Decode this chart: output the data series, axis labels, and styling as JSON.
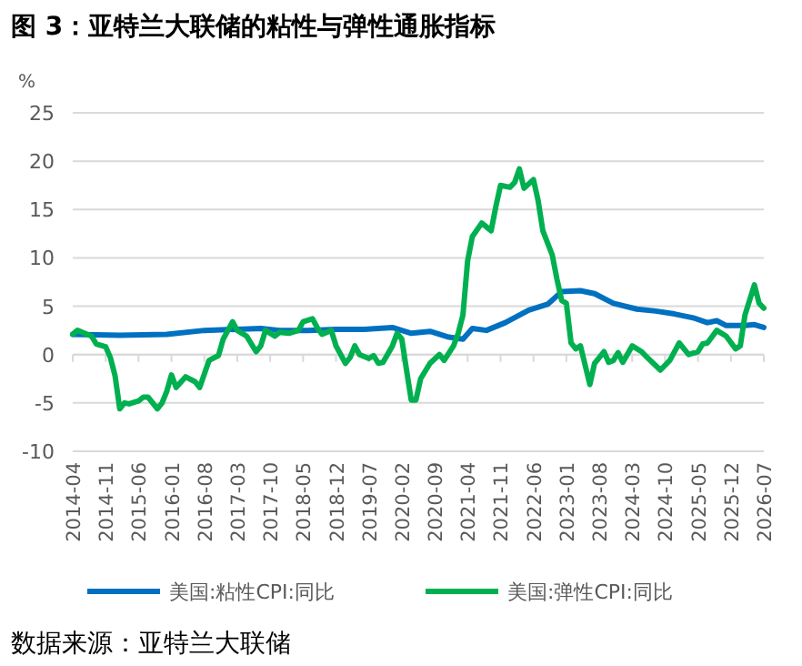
{
  "chart_data": {
    "type": "line",
    "title": "图 3：亚特兰大联储的粘性与弹性通胀指标",
    "ylabel": "%",
    "annotations": [
      "数据来源：亚特兰大联储"
    ],
    "xlim": [
      "2014-04",
      "2026-07"
    ],
    "xticks": [
      "2014-04",
      "2014-11",
      "2015-06",
      "2016-01",
      "2016-08",
      "2017-03",
      "2017-10",
      "2018-05",
      "2018-12",
      "2019-07",
      "2020-02",
      "2020-09",
      "2021-04",
      "2021-11",
      "2022-06",
      "2023-01",
      "2023-08",
      "2024-03",
      "2024-10",
      "2025-05",
      "2025-12",
      "2026-07"
    ],
    "ylim": [
      -10,
      25
    ],
    "yticks": [
      -10,
      -5,
      0,
      5,
      10,
      15,
      20,
      25
    ],
    "grid": "y",
    "legend": "bottom",
    "marker": "none",
    "line_style": "solid",
    "series": [
      {
        "name": "美国:粘性CPI:同比",
        "color": "#0070c0",
        "x": [
          "2014-04",
          "2015-02",
          "2015-12",
          "2016-08",
          "2017-08",
          "2017-12",
          "2018-06",
          "2018-12",
          "2019-06",
          "2019-12",
          "2020-04",
          "2020-08",
          "2020-12",
          "2021-03",
          "2021-05",
          "2021-08",
          "2021-12",
          "2022-05",
          "2022-09",
          "2022-12",
          "2023-04",
          "2023-07",
          "2023-11",
          "2024-04",
          "2024-08",
          "2024-12",
          "2025-04",
          "2025-07",
          "2025-09",
          "2025-11",
          "2026-03",
          "2026-05",
          "2026-07"
        ],
        "values": [
          2.1,
          2.0,
          2.1,
          2.5,
          2.7,
          2.5,
          2.5,
          2.6,
          2.6,
          2.8,
          2.2,
          2.4,
          1.8,
          1.6,
          2.7,
          2.5,
          3.3,
          4.6,
          5.2,
          6.5,
          6.6,
          6.3,
          5.3,
          4.7,
          4.5,
          4.2,
          3.8,
          3.3,
          3.5,
          3.0,
          3.0,
          3.1,
          2.8
        ]
      },
      {
        "name": "美国:弹性CPI:同比",
        "color": "#00b050",
        "x": [
          "2014-04",
          "2014-05",
          "2014-08",
          "2014-09",
          "2014-11",
          "2014-12",
          "2015-01",
          "2015-02",
          "2015-03",
          "2015-04",
          "2015-06",
          "2015-07",
          "2015-08",
          "2015-10",
          "2015-11",
          "2015-12",
          "2016-01",
          "2016-02",
          "2016-04",
          "2016-06",
          "2016-07",
          "2016-09",
          "2016-11",
          "2016-12",
          "2017-02",
          "2017-03",
          "2017-05",
          "2017-07",
          "2017-08",
          "2017-09",
          "2017-11",
          "2017-12",
          "2018-02",
          "2018-04",
          "2018-05",
          "2018-07",
          "2018-08",
          "2018-09",
          "2018-11",
          "2018-12",
          "2019-02",
          "2019-03",
          "2019-04",
          "2019-05",
          "2019-07",
          "2019-08",
          "2019-09",
          "2019-10",
          "2019-12",
          "2020-01",
          "2020-02",
          "2020-03",
          "2020-04",
          "2020-05",
          "2020-06",
          "2020-08",
          "2020-10",
          "2020-11",
          "2021-01",
          "2021-02",
          "2021-03",
          "2021-04",
          "2021-05",
          "2021-07",
          "2021-09",
          "2021-10",
          "2021-11",
          "2022-01",
          "2022-02",
          "2022-03",
          "2022-04",
          "2022-06",
          "2022-07",
          "2022-08",
          "2022-10",
          "2022-11",
          "2022-12",
          "2023-01",
          "2023-02",
          "2023-03",
          "2023-04",
          "2023-06",
          "2023-07",
          "2023-09",
          "2023-10",
          "2023-11",
          "2023-12",
          "2024-01",
          "2024-03",
          "2024-05",
          "2024-06",
          "2024-09",
          "2024-11",
          "2025-01",
          "2025-03",
          "2025-05",
          "2025-06",
          "2025-07",
          "2025-09",
          "2025-11",
          "2026-01",
          "2026-02",
          "2026-03",
          "2026-05",
          "2026-06",
          "2026-07"
        ],
        "values": [
          2.1,
          2.5,
          1.9,
          1.1,
          0.8,
          -0.3,
          -2.2,
          -5.6,
          -5,
          -5.1,
          -4.8,
          -4.4,
          -4.4,
          -5.6,
          -5,
          -3.8,
          -2.1,
          -3.4,
          -2.3,
          -2.8,
          -3.4,
          -0.6,
          -0.1,
          1.6,
          3.4,
          2.5,
          1.9,
          0.3,
          0.9,
          2.5,
          1.9,
          2.3,
          2.2,
          2.5,
          3.4,
          3.7,
          2.8,
          2.1,
          2.5,
          0.9,
          -0.9,
          -0.3,
          0.9,
          0,
          -0.4,
          -0.1,
          -0.9,
          -0.8,
          0.9,
          2.2,
          1.6,
          -1.6,
          -4.7,
          -4.7,
          -2.5,
          -0.9,
          0,
          -0.6,
          0.9,
          2.2,
          4.1,
          9.7,
          12.2,
          13.6,
          12.8,
          15.3,
          17.5,
          17.3,
          17.8,
          19.2,
          17.2,
          18.1,
          15.9,
          12.8,
          10.3,
          7.8,
          5.6,
          5.3,
          1.2,
          0.6,
          0.9,
          -3.1,
          -0.9,
          0.3,
          -0.8,
          -0.6,
          0.2,
          -0.8,
          0.9,
          0.3,
          -0.2,
          -1.6,
          -0.6,
          1.2,
          0,
          0.3,
          1.1,
          1.2,
          2.5,
          1.9,
          0.6,
          0.9,
          4.1,
          7.2,
          5.3,
          4.8
        ]
      }
    ]
  }
}
